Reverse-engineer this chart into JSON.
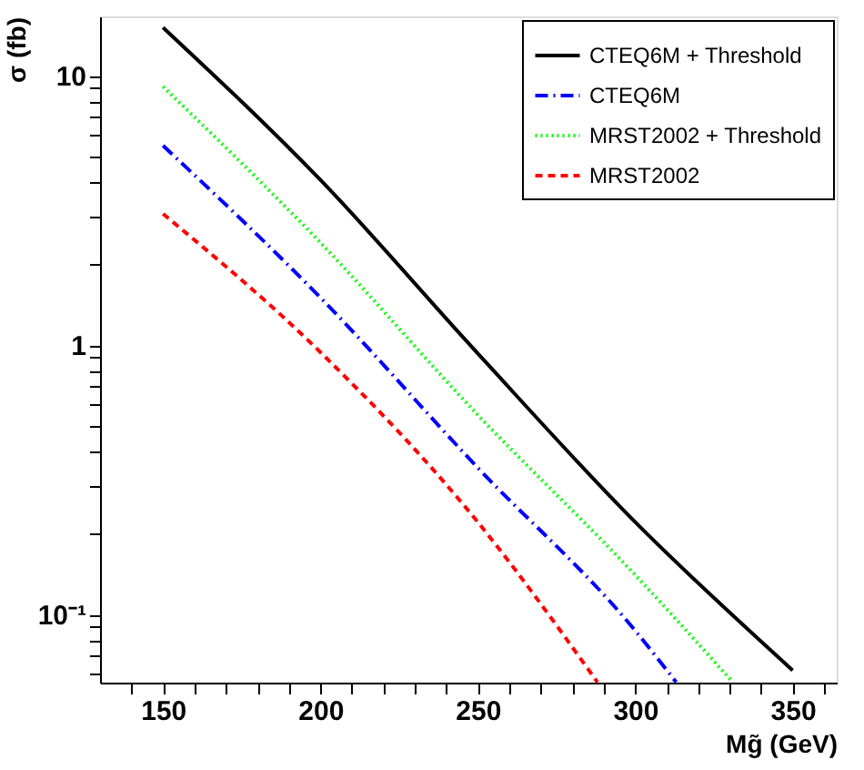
{
  "chart_data": {
    "type": "line",
    "xlabel": "Mg̃ (GeV)",
    "ylabel": "σ (fb)",
    "log": "y",
    "grid": false,
    "legend": "top right",
    "xlim": [
      130,
      364
    ],
    "ylim": [
      0.0558,
      16.6
    ],
    "xticks": [
      {
        "value": 140,
        "label": null
      },
      150,
      {
        "value": 160,
        "label": null
      },
      {
        "value": 170,
        "label": null
      },
      {
        "value": 180,
        "label": null
      },
      {
        "value": 190,
        "label": null
      },
      200,
      {
        "value": 210,
        "label": null
      },
      {
        "value": 220,
        "label": null
      },
      {
        "value": 230,
        "label": null
      },
      {
        "value": 240,
        "label": null
      },
      250,
      {
        "value": 260,
        "label": null
      },
      {
        "value": 270,
        "label": null
      },
      {
        "value": 280,
        "label": null
      },
      {
        "value": 290,
        "label": null
      },
      300,
      {
        "value": 310,
        "label": null
      },
      {
        "value": 320,
        "label": null
      },
      {
        "value": 330,
        "label": null
      },
      {
        "value": 340,
        "label": null
      },
      350,
      {
        "value": 360,
        "label": null
      }
    ],
    "yticks": [
      {
        "value": 0.06,
        "label": null
      },
      {
        "value": 0.07,
        "label": null
      },
      {
        "value": 0.08,
        "label": null
      },
      {
        "value": 0.09,
        "label": null
      },
      {
        "value": 0.1,
        "label": "10⁻¹"
      },
      {
        "value": 0.2,
        "label": null
      },
      {
        "value": 0.3,
        "label": null
      },
      {
        "value": 0.4,
        "label": null
      },
      {
        "value": 0.5,
        "label": null
      },
      {
        "value": 0.6,
        "label": null
      },
      {
        "value": 0.7,
        "label": null
      },
      {
        "value": 0.8,
        "label": null
      },
      {
        "value": 0.9,
        "label": null
      },
      1,
      {
        "value": 2,
        "label": null
      },
      {
        "value": 3,
        "label": null
      },
      {
        "value": 4,
        "label": null
      },
      {
        "value": 5,
        "label": null
      },
      {
        "value": 6,
        "label": null
      },
      {
        "value": 7,
        "label": null
      },
      {
        "value": 8,
        "label": null
      },
      {
        "value": 9,
        "label": null
      },
      10
    ],
    "series": [
      {
        "name": "CTEQ6M + Threshold",
        "color": "#000000",
        "line_style": "solid",
        "x": [
          150,
          200,
          250,
          300,
          350
        ],
        "values": [
          15.1,
          4.1,
          0.93,
          0.22,
          0.062
        ]
      },
      {
        "name": "CTEQ6M",
        "color": "#0000ff",
        "line_style": "dashdot",
        "x": [
          150,
          200,
          250,
          300,
          313
        ],
        "values": [
          5.5,
          1.5,
          0.35,
          0.087,
          0.056
        ]
      },
      {
        "name": "MRST2002 + Threshold",
        "color": "#00ff00",
        "line_style": "dotted",
        "x": [
          150,
          200,
          250,
          300,
          331
        ],
        "values": [
          9.1,
          2.4,
          0.55,
          0.14,
          0.056
        ]
      },
      {
        "name": "MRST2002",
        "color": "#ff0000",
        "line_style": "dashed",
        "x": [
          150,
          200,
          250,
          288
        ],
        "values": [
          3.07,
          0.94,
          0.22,
          0.056
        ]
      }
    ]
  }
}
